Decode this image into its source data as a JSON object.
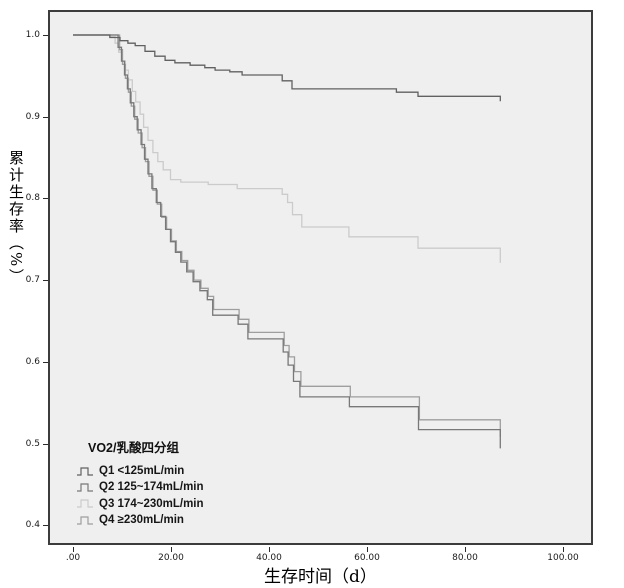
{
  "figure": {
    "background_color": "#ffffff",
    "plot_background_color": "#efefef",
    "plot_border_color": "#3c3c3c",
    "tick_color": "#2b2b2b"
  },
  "axes": {
    "x": {
      "title": "生存时间（d）",
      "ticks": [
        ".00",
        "20.00",
        "40.00",
        "60.00",
        "80.00",
        "100.00"
      ],
      "tick_values": [
        0,
        20,
        40,
        60,
        80,
        100
      ],
      "range": [
        0,
        100
      ]
    },
    "y": {
      "title": "累计生存率（%）",
      "ticks": [
        "1.0",
        "0.9",
        "0.8",
        "0.7",
        "0.6",
        "0.5",
        "0.4"
      ],
      "tick_values": [
        1.0,
        0.9,
        0.8,
        0.7,
        0.6,
        0.5,
        0.4
      ],
      "range": [
        0.4,
        1.0
      ]
    }
  },
  "legend": {
    "title": "VO2/乳酸四分组",
    "position": "inside-bottom-left",
    "items": [
      {
        "label": "Q1 <125mL/min",
        "color": "#616161"
      },
      {
        "label": "Q2 125~174mL/min",
        "color": "#787878"
      },
      {
        "label": "Q3 174~230mL/min",
        "color": "#cbcbcb"
      },
      {
        "label": "Q4 ≥230mL/min",
        "color": "#9e9e9e"
      }
    ]
  },
  "chart_data": {
    "type": "line",
    "subtype": "kaplan-meier-step",
    "title": "",
    "xlabel": "生存时间（d）",
    "ylabel": "累计生存率（%）",
    "xlim": [
      0,
      100
    ],
    "ylim": [
      0.4,
      1.0
    ],
    "grid": false,
    "legend_position": "inside-bottom-left",
    "draw_order": [
      2,
      3,
      1,
      0
    ],
    "series": [
      {
        "name": "Q1",
        "label": "Q1 <125mL/min",
        "color": "#616161",
        "points": [
          [
            0,
            1.0
          ],
          [
            7.5,
            0.997
          ],
          [
            9.6,
            0.993
          ],
          [
            11.2,
            0.99
          ],
          [
            12.7,
            0.987
          ],
          [
            14.7,
            0.98
          ],
          [
            16.7,
            0.974
          ],
          [
            18.8,
            0.969
          ],
          [
            20.8,
            0.966
          ],
          [
            23.9,
            0.963
          ],
          [
            26.9,
            0.96
          ],
          [
            29,
            0.957
          ],
          [
            32,
            0.955
          ],
          [
            34.5,
            0.951
          ],
          [
            42.7,
            0.944
          ],
          [
            44.7,
            0.934
          ],
          [
            66,
            0.93
          ],
          [
            70.4,
            0.925
          ],
          [
            87.2,
            0.919
          ]
        ]
      },
      {
        "name": "Q2",
        "label": "Q2 125~174mL/min",
        "color": "#787878",
        "points": [
          [
            0,
            1.0
          ],
          [
            9.2,
            0.985
          ],
          [
            9.9,
            0.968
          ],
          [
            10.5,
            0.951
          ],
          [
            11.1,
            0.934
          ],
          [
            11.7,
            0.917
          ],
          [
            12.4,
            0.9
          ],
          [
            13.1,
            0.884
          ],
          [
            13.9,
            0.866
          ],
          [
            14.6,
            0.848
          ],
          [
            15.3,
            0.83
          ],
          [
            16.1,
            0.812
          ],
          [
            17,
            0.795
          ],
          [
            17.9,
            0.778
          ],
          [
            18.9,
            0.762
          ],
          [
            19.9,
            0.747
          ],
          [
            20.9,
            0.734
          ],
          [
            22,
            0.722
          ],
          [
            23.2,
            0.71
          ],
          [
            24.5,
            0.698
          ],
          [
            25.9,
            0.687
          ],
          [
            27.4,
            0.676
          ],
          [
            28.5,
            0.657
          ],
          [
            33.7,
            0.646
          ],
          [
            35.7,
            0.628
          ],
          [
            42.9,
            0.612
          ],
          [
            43.9,
            0.596
          ],
          [
            45,
            0.576
          ],
          [
            46.3,
            0.557
          ],
          [
            56.4,
            0.545
          ],
          [
            70.5,
            0.517
          ],
          [
            87.2,
            0.494
          ]
        ]
      },
      {
        "name": "Q3",
        "label": "Q3 174~230mL/min",
        "color": "#cbcbcb",
        "points": [
          [
            0,
            1.0
          ],
          [
            7.6,
            0.998
          ],
          [
            8.6,
            0.99
          ],
          [
            9.3,
            0.979
          ],
          [
            10,
            0.968
          ],
          [
            10.7,
            0.957
          ],
          [
            11.3,
            0.945
          ],
          [
            12.1,
            0.931
          ],
          [
            12.8,
            0.918
          ],
          [
            13.7,
            0.903
          ],
          [
            14.4,
            0.887
          ],
          [
            15.3,
            0.871
          ],
          [
            16.3,
            0.856
          ],
          [
            17.3,
            0.845
          ],
          [
            18.4,
            0.835
          ],
          [
            19.9,
            0.823
          ],
          [
            22,
            0.82
          ],
          [
            27.6,
            0.817
          ],
          [
            33.5,
            0.812
          ],
          [
            42.7,
            0.805
          ],
          [
            43.8,
            0.795
          ],
          [
            44.8,
            0.78
          ],
          [
            46.7,
            0.765
          ],
          [
            56.3,
            0.753
          ],
          [
            70.4,
            0.739
          ],
          [
            87.2,
            0.721
          ]
        ]
      },
      {
        "name": "Q4",
        "label": "Q4 ≥230mL/min",
        "color": "#9e9e9e",
        "points": [
          [
            0,
            1.0
          ],
          [
            9.5,
            0.982
          ],
          [
            10.1,
            0.964
          ],
          [
            10.7,
            0.947
          ],
          [
            11.3,
            0.93
          ],
          [
            11.9,
            0.913
          ],
          [
            12.6,
            0.897
          ],
          [
            13.3,
            0.88
          ],
          [
            14.1,
            0.862
          ],
          [
            14.8,
            0.845
          ],
          [
            15.5,
            0.827
          ],
          [
            16.3,
            0.81
          ],
          [
            17.2,
            0.793
          ],
          [
            18.1,
            0.777
          ],
          [
            19.1,
            0.762
          ],
          [
            20.1,
            0.748
          ],
          [
            21.1,
            0.735
          ],
          [
            22.2,
            0.724
          ],
          [
            23.4,
            0.712
          ],
          [
            24.7,
            0.7
          ],
          [
            26.1,
            0.69
          ],
          [
            27.6,
            0.68
          ],
          [
            28.7,
            0.664
          ],
          [
            33.9,
            0.652
          ],
          [
            35.9,
            0.636
          ],
          [
            43.1,
            0.62
          ],
          [
            44.1,
            0.606
          ],
          [
            45.2,
            0.588
          ],
          [
            46.5,
            0.57
          ],
          [
            56.6,
            0.557
          ],
          [
            70.7,
            0.529
          ],
          [
            87.2,
            0.508
          ]
        ]
      }
    ]
  }
}
